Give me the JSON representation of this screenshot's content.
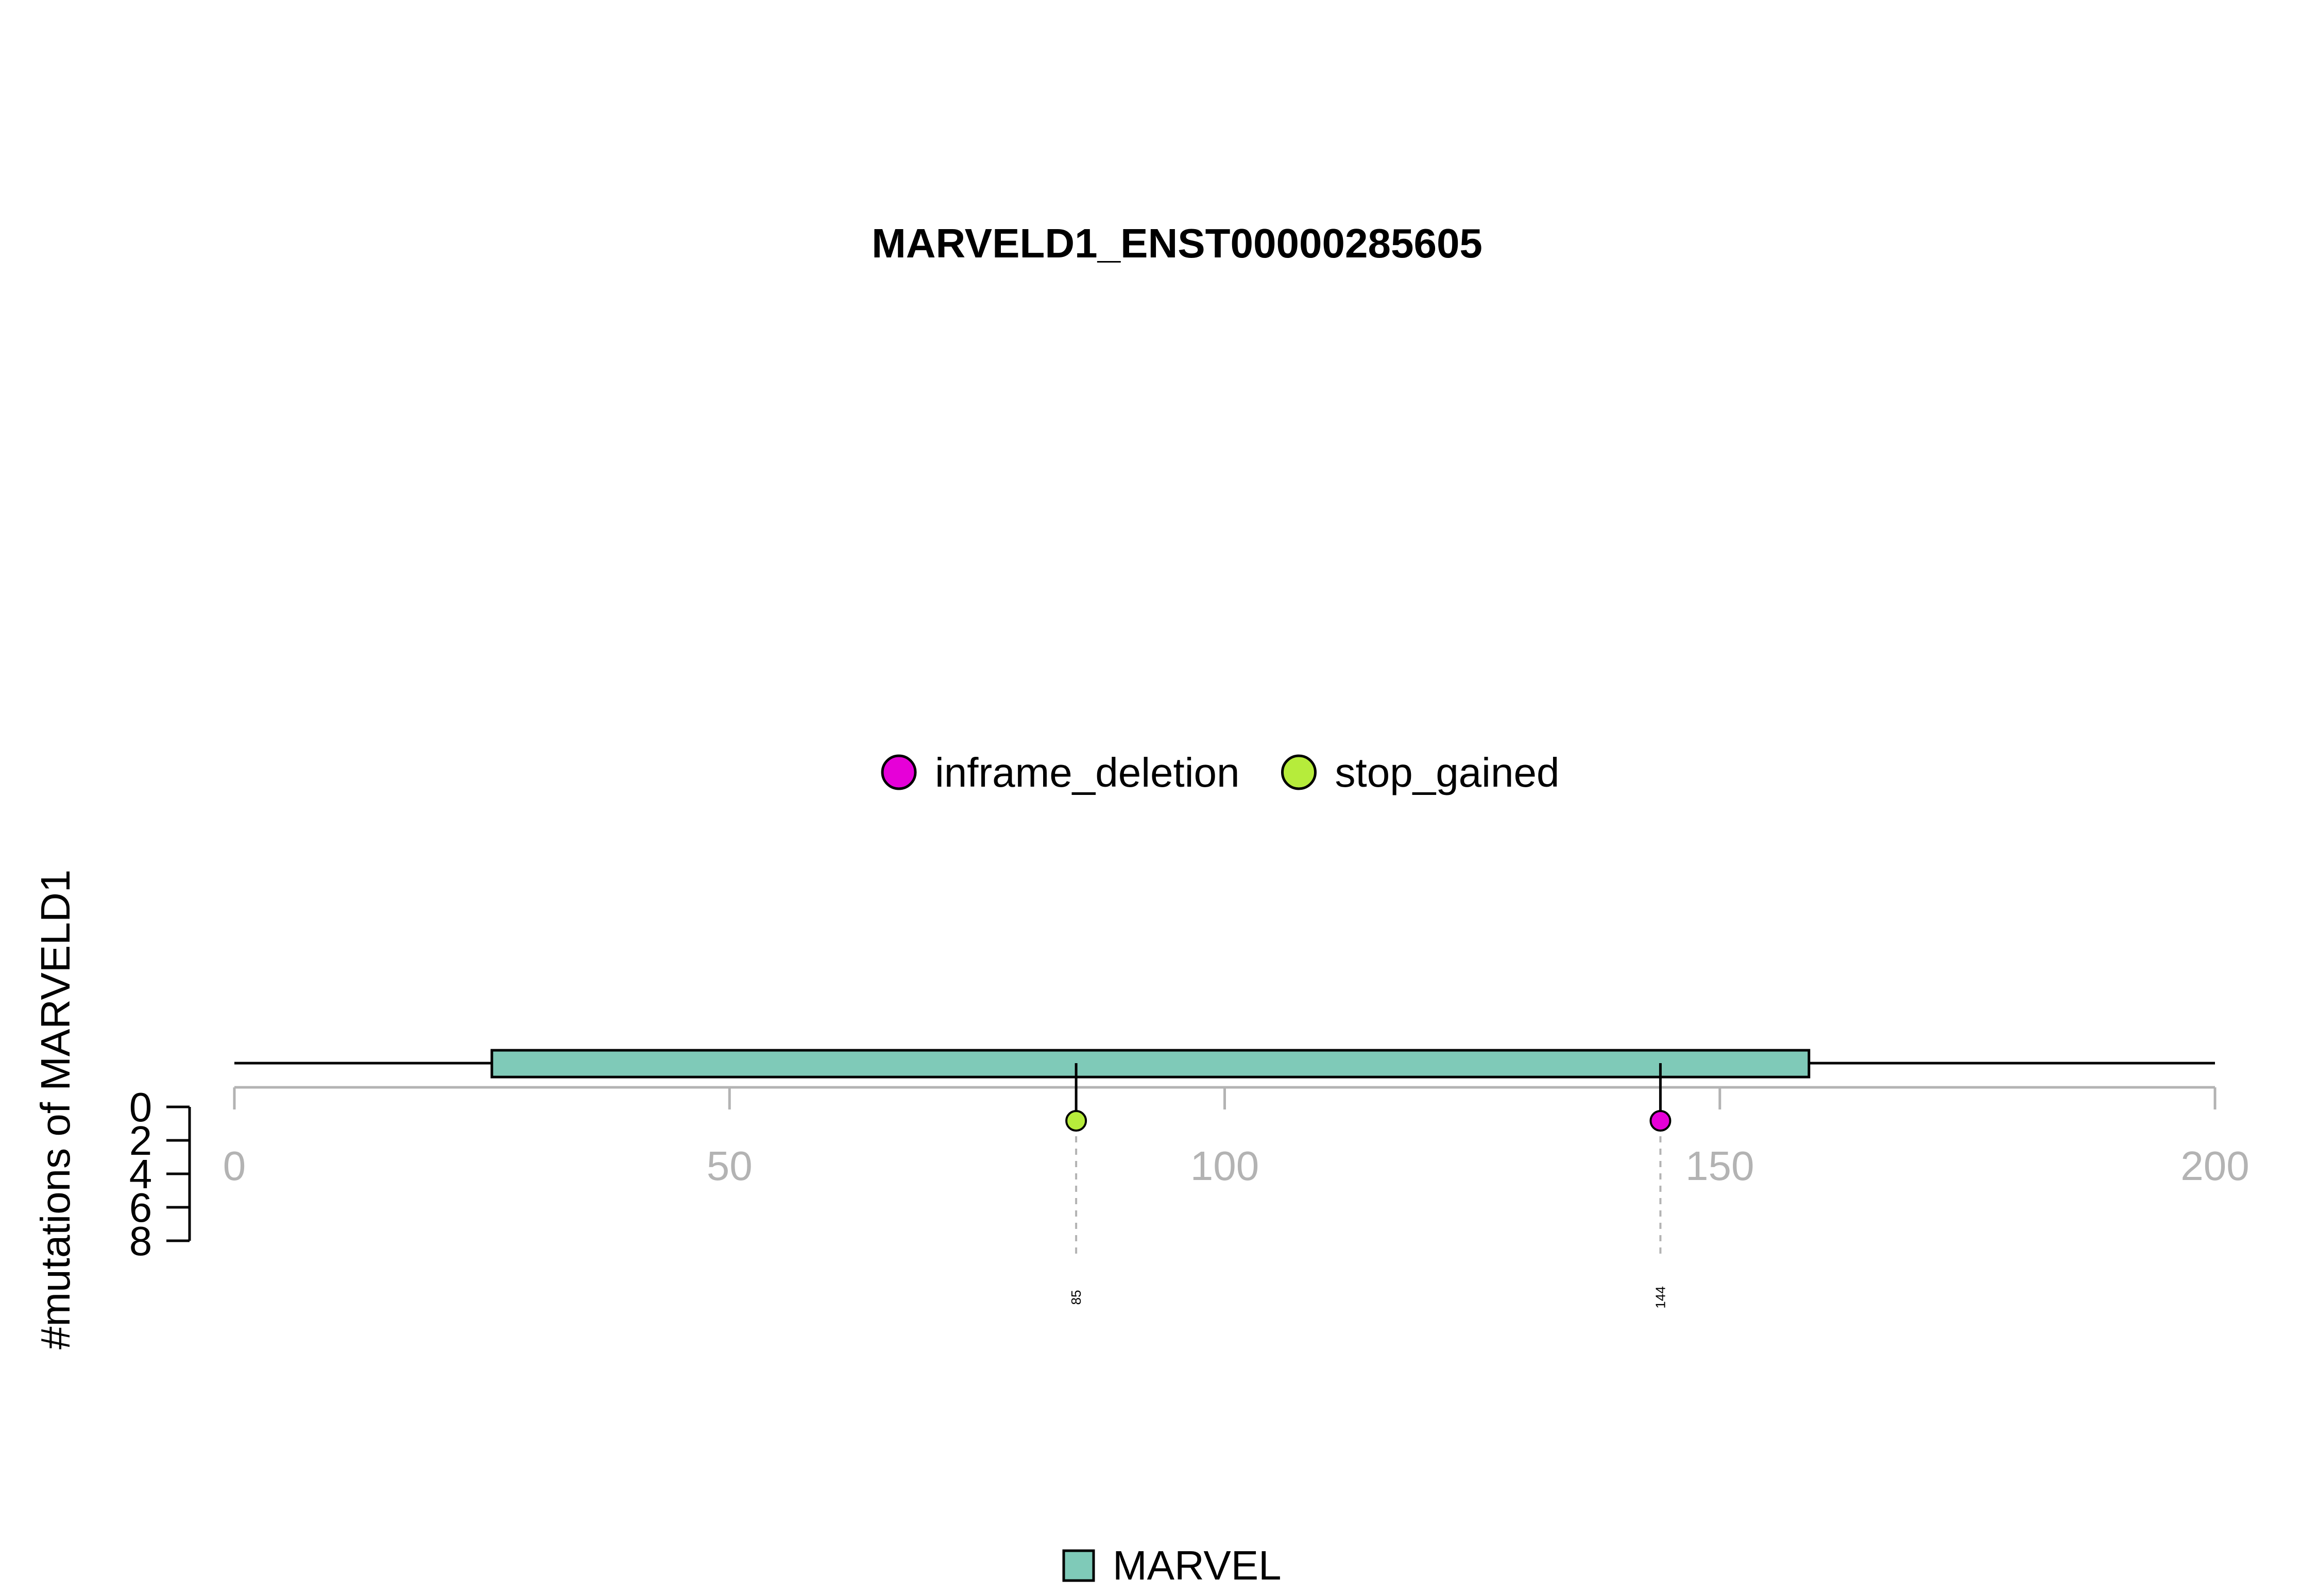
{
  "chart_data": {
    "type": "lollipop",
    "title": "MARVELD1_ENST00000285605",
    "ylabel": "#mutations of MARVELD1",
    "xlim": [
      0,
      200
    ],
    "xticks": [
      0,
      50,
      100,
      150,
      200
    ],
    "ylim": [
      0,
      8
    ],
    "yticks": [
      0,
      2,
      4,
      6,
      8
    ],
    "protein_length": 200,
    "colors": {
      "inframe_deletion": "#e600d8",
      "stop_gained": "#b6ec3b",
      "MARVEL": "#7fcab8",
      "axis_gray": "#b3b3b3"
    },
    "legend_mutations": [
      {
        "label": "inframe_deletion",
        "color": "#e600d8"
      },
      {
        "label": "stop_gained",
        "color": "#b6ec3b"
      }
    ],
    "domains": [
      {
        "name": "MARVEL",
        "start": 26,
        "end": 159,
        "color": "#7fcab8"
      }
    ],
    "mutations": [
      {
        "position": 85,
        "count": 1,
        "type": "stop_gained",
        "label": "85"
      },
      {
        "position": 144,
        "count": 1,
        "type": "inframe_deletion",
        "label": "144"
      }
    ]
  }
}
